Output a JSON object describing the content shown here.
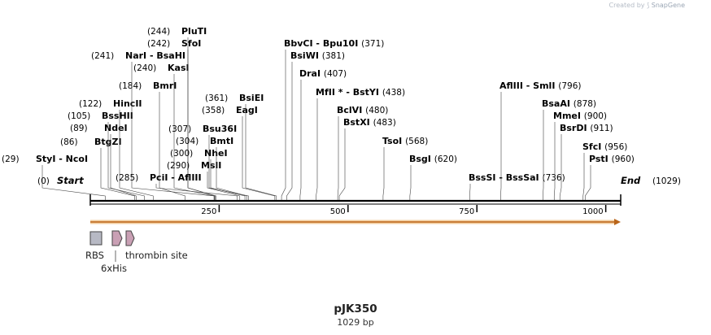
{
  "credit": {
    "prefix": "Created by",
    "brand": "SnapGene"
  },
  "sequence": {
    "name": "pJK350",
    "length_label": "1029 bp",
    "length": 1029
  },
  "colors": {
    "arrow": "#e8a24a",
    "feature_gray": "#b7b9c4",
    "feature_pink": "#c9a0b4",
    "line": "#000000"
  },
  "ruler": {
    "ticks": [
      250,
      500,
      750,
      1000
    ],
    "labels": [
      "250",
      "500",
      "750",
      "1000"
    ]
  },
  "ends": {
    "start_label": "Start",
    "start_pos": "(0)",
    "end_label": "End",
    "end_pos": "(1029)"
  },
  "sites": [
    {
      "names": [
        "StyI",
        "NcoI"
      ],
      "pos": "(29)"
    },
    {
      "names": [
        "BtgZI"
      ],
      "pos": "(86)"
    },
    {
      "names": [
        "NdeI"
      ],
      "pos": "(89)"
    },
    {
      "names": [
        "BssHII"
      ],
      "pos": "(105)"
    },
    {
      "names": [
        "HincII"
      ],
      "pos": "(122)"
    },
    {
      "names": [
        "BmrI"
      ],
      "pos": "(184)"
    },
    {
      "names": [
        "KasI"
      ],
      "pos": "(240)"
    },
    {
      "names": [
        "NarI",
        "BsaHI"
      ],
      "pos": "(241)"
    },
    {
      "names": [
        "SfoI"
      ],
      "pos": "(242)"
    },
    {
      "names": [
        "PluTI"
      ],
      "pos": "(244)"
    },
    {
      "names": [
        "PciI",
        "AflIII"
      ],
      "pos": "(285)"
    },
    {
      "names": [
        "MslI"
      ],
      "pos": "(290)"
    },
    {
      "names": [
        "NheI"
      ],
      "pos": "(300)"
    },
    {
      "names": [
        "BmtI"
      ],
      "pos": "(304)"
    },
    {
      "names": [
        "Bsu36I"
      ],
      "pos": "(307)"
    },
    {
      "names": [
        "EagI"
      ],
      "pos": "(358)"
    },
    {
      "names": [
        "BsiEI"
      ],
      "pos": "(361)"
    },
    {
      "names": [
        "BbvCI",
        "Bpu10I"
      ],
      "pos": "(371)"
    },
    {
      "names": [
        "BsiWI"
      ],
      "pos": "(381)"
    },
    {
      "names": [
        "DraI"
      ],
      "pos": "(407)"
    },
    {
      "names": [
        "MfII *",
        "BstYI"
      ],
      "pos": "(438)"
    },
    {
      "names": [
        "BclVI"
      ],
      "pos": "(480)"
    },
    {
      "names": [
        "BstXI"
      ],
      "pos": "(483)"
    },
    {
      "names": [
        "TsoI"
      ],
      "pos": "(568)"
    },
    {
      "names": [
        "BsgI"
      ],
      "pos": "(620)"
    },
    {
      "names": [
        "BssSI",
        "BssSaI"
      ],
      "pos": "(736)"
    },
    {
      "names": [
        "AflIII",
        "SmlI"
      ],
      "pos": "(796)"
    },
    {
      "names": [
        "BsaAI"
      ],
      "pos": "(878)"
    },
    {
      "names": [
        "MmeI"
      ],
      "pos": "(900)"
    },
    {
      "names": [
        "BsrDI"
      ],
      "pos": "(911)"
    },
    {
      "names": [
        "SfcI"
      ],
      "pos": "(956)"
    },
    {
      "names": [
        "PstI"
      ],
      "pos": "(960)"
    }
  ],
  "features": [
    {
      "label": "RBS",
      "shape": "box",
      "color": "gray"
    },
    {
      "label": "6xHis",
      "shape": "arrow",
      "color": "pink"
    },
    {
      "label": "thrombin site",
      "shape": "arrow",
      "color": "pink"
    }
  ]
}
